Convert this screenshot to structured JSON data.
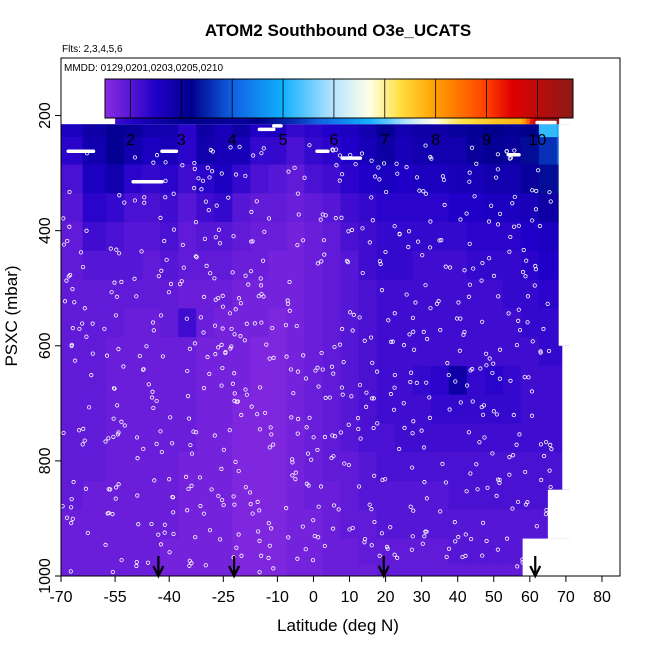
{
  "chart_data": {
    "type": "heatmap",
    "title": "ATOM2 Southbound O3e_UCATS",
    "flights_note": "Flts: 2,3,4,5,6",
    "dates_note": "MMDD: 0129,0201,0203,0205,0210",
    "xlabel": "Latitude (deg N)",
    "ylabel": "PSXC (mbar)",
    "xlim": [
      -70,
      85
    ],
    "ylim": [
      1000,
      100
    ],
    "x_tick_values": [
      -70,
      -55,
      -40,
      -25,
      -10,
      0,
      10,
      20,
      30,
      40,
      50,
      60,
      70,
      80
    ],
    "x_tick_labels": [
      "-70",
      "-55",
      "-40",
      "-25",
      "-10",
      "0",
      "10",
      "20",
      "30",
      "40",
      "50",
      "60",
      "70",
      "80"
    ],
    "y_tick_values": [
      200,
      400,
      600,
      800,
      1000
    ],
    "y_tick_labels": [
      "200",
      "400",
      "600",
      "800",
      "1000"
    ],
    "colorbar": {
      "min": 1.5,
      "max": 10.7,
      "tick_values": [
        2,
        3,
        4,
        5,
        6,
        7,
        8,
        9,
        10
      ],
      "tick_labels": [
        "2",
        "3",
        "4",
        "5",
        "6",
        "7",
        "8",
        "9",
        "10"
      ],
      "color_stops": [
        {
          "value": 1.5,
          "color": "#8a2be2"
        },
        {
          "value": 2.5,
          "color": "#2000c8"
        },
        {
          "value": 3.2,
          "color": "#00008b"
        },
        {
          "value": 4.0,
          "color": "#1060e0"
        },
        {
          "value": 5.0,
          "color": "#10b0ff"
        },
        {
          "value": 6.0,
          "color": "#b8e4ff"
        },
        {
          "value": 6.7,
          "color": "#ffffe8"
        },
        {
          "value": 7.3,
          "color": "#ffe040"
        },
        {
          "value": 8.0,
          "color": "#ffa000"
        },
        {
          "value": 9.0,
          "color": "#ff4000"
        },
        {
          "value": 9.5,
          "color": "#e00000"
        },
        {
          "value": 10.7,
          "color": "#8b1a1a"
        }
      ]
    },
    "arrow_latitudes": [
      -43,
      -22,
      19.5,
      61.5
    ],
    "lat_grid": [
      -68,
      -60,
      -55,
      -50,
      -45,
      -40,
      -35,
      -30,
      -25,
      -20,
      -15,
      -10,
      -5,
      0,
      5,
      10,
      15,
      20,
      25,
      30,
      35,
      40,
      45,
      50,
      55,
      60,
      65,
      70
    ],
    "pres_grid": [
      215,
      260,
      310,
      360,
      410,
      460,
      510,
      560,
      610,
      660,
      710,
      760,
      810,
      860,
      910,
      960,
      1000
    ],
    "o3_matrix": [
      [
        2.6,
        2.9,
        3.1,
        3.0,
        2.8,
        2.8,
        2.4,
        2.9,
        2.7,
        2.9,
        2.5,
        2.6,
        2.3,
        2.4,
        2.5,
        2.6,
        2.8,
        3.1,
        2.8,
        2.9,
        2.9,
        3.0,
        3.1,
        3.2,
        3.1,
        3.2,
        5.2,
        5.0
      ],
      [
        2.4,
        2.8,
        3.1,
        2.8,
        2.6,
        2.7,
        2.4,
        2.8,
        2.7,
        2.7,
        2.3,
        2.3,
        2.1,
        2.3,
        2.4,
        2.5,
        2.7,
        2.9,
        2.7,
        2.8,
        2.8,
        2.8,
        3.0,
        3.1,
        3.0,
        3.3,
        3.6,
        4.0
      ],
      [
        2.1,
        2.6,
        2.8,
        2.4,
        2.3,
        2.4,
        2.2,
        2.4,
        2.6,
        2.3,
        2.1,
        2.0,
        1.9,
        2.1,
        2.2,
        2.4,
        2.5,
        2.6,
        2.5,
        2.6,
        2.6,
        2.7,
        2.7,
        2.8,
        2.8,
        3.0,
        3.3,
        3.4
      ],
      [
        2.0,
        2.4,
        2.3,
        2.1,
        2.1,
        2.2,
        2.0,
        2.2,
        2.3,
        2.0,
        1.9,
        1.9,
        1.8,
        1.9,
        2.0,
        2.2,
        2.3,
        2.4,
        2.4,
        2.4,
        2.4,
        2.5,
        2.5,
        2.6,
        2.6,
        2.7,
        2.9,
        3.0
      ],
      [
        1.9,
        2.2,
        2.1,
        2.0,
        2.0,
        2.1,
        1.9,
        2.0,
        2.0,
        1.9,
        1.8,
        1.8,
        1.7,
        1.8,
        1.9,
        2.1,
        2.2,
        2.3,
        2.3,
        2.3,
        2.3,
        2.3,
        2.4,
        2.4,
        2.4,
        2.5,
        2.6,
        2.7
      ],
      [
        1.9,
        2.0,
        2.0,
        2.0,
        1.9,
        2.0,
        1.9,
        1.9,
        1.9,
        1.8,
        1.8,
        1.7,
        1.7,
        1.8,
        1.9,
        2.0,
        2.2,
        2.3,
        2.3,
        2.2,
        2.2,
        2.2,
        2.3,
        2.3,
        2.3,
        2.4,
        2.5,
        2.5
      ],
      [
        1.9,
        1.9,
        1.9,
        1.9,
        1.9,
        1.9,
        1.8,
        1.8,
        1.8,
        1.7,
        1.7,
        1.7,
        1.7,
        1.8,
        1.9,
        2.0,
        2.1,
        2.2,
        2.2,
        2.2,
        2.2,
        2.2,
        2.2,
        2.2,
        2.3,
        2.3,
        2.4,
        2.4
      ],
      [
        1.9,
        1.9,
        1.9,
        1.8,
        1.8,
        1.9,
        2.2,
        1.8,
        1.7,
        1.7,
        1.7,
        1.6,
        1.7,
        1.8,
        1.9,
        2.0,
        2.1,
        2.2,
        2.2,
        2.2,
        2.2,
        2.2,
        2.2,
        2.2,
        2.2,
        2.3,
        2.3,
        2.3
      ],
      [
        1.9,
        1.9,
        1.8,
        1.8,
        1.8,
        1.8,
        1.8,
        1.7,
        1.7,
        1.7,
        1.6,
        1.6,
        1.7,
        1.8,
        1.9,
        2.0,
        2.1,
        2.2,
        2.2,
        2.2,
        2.2,
        2.2,
        2.2,
        2.2,
        2.2,
        2.2,
        2.3,
        2.3
      ],
      [
        1.9,
        1.9,
        1.8,
        1.8,
        1.8,
        1.8,
        1.8,
        1.7,
        1.7,
        1.7,
        1.6,
        1.6,
        1.7,
        1.8,
        1.9,
        2.0,
        2.1,
        2.2,
        2.2,
        2.3,
        2.4,
        2.9,
        2.3,
        2.4,
        2.3,
        2.2,
        2.2,
        2.2
      ],
      [
        1.9,
        1.9,
        1.8,
        1.8,
        1.8,
        1.8,
        1.8,
        1.7,
        1.7,
        1.6,
        1.6,
        1.6,
        1.7,
        1.8,
        1.9,
        2.0,
        2.1,
        2.2,
        2.2,
        2.2,
        2.3,
        2.3,
        2.3,
        2.3,
        2.3,
        2.2,
        2.2,
        2.2
      ],
      [
        1.9,
        1.9,
        1.8,
        1.8,
        1.8,
        1.8,
        1.8,
        1.7,
        1.7,
        1.6,
        1.6,
        1.6,
        1.7,
        1.8,
        1.9,
        2.0,
        2.1,
        2.1,
        2.2,
        2.2,
        2.2,
        2.2,
        2.2,
        2.2,
        2.2,
        2.2,
        2.2,
        2.2
      ],
      [
        1.9,
        1.9,
        1.8,
        1.8,
        1.8,
        1.8,
        1.7,
        1.7,
        1.7,
        1.6,
        1.6,
        1.6,
        1.7,
        1.8,
        1.9,
        1.9,
        2.0,
        2.1,
        2.1,
        2.1,
        2.1,
        2.1,
        2.1,
        2.1,
        2.1,
        2.1,
        2.1,
        2.1
      ],
      [
        1.9,
        1.8,
        1.8,
        1.8,
        1.8,
        1.8,
        1.7,
        1.7,
        1.7,
        1.6,
        1.6,
        1.6,
        1.7,
        1.8,
        1.8,
        1.9,
        2.0,
        2.0,
        2.0,
        2.0,
        2.0,
        2.1,
        2.1,
        2.1,
        2.1,
        2.1,
        2.1,
        2.1
      ],
      [
        1.8,
        1.8,
        1.8,
        1.8,
        1.8,
        1.8,
        1.7,
        1.7,
        1.7,
        1.6,
        1.6,
        1.6,
        1.7,
        1.7,
        1.8,
        1.9,
        1.9,
        2.0,
        2.0,
        2.0,
        2.0,
        2.0,
        2.0,
        2.0,
        2.0,
        2.0,
        2.0,
        2.0
      ],
      [
        1.8,
        1.8,
        1.8,
        1.8,
        1.8,
        1.7,
        1.7,
        1.7,
        1.7,
        1.6,
        1.6,
        1.6,
        1.7,
        1.7,
        1.8,
        1.8,
        1.9,
        1.9,
        1.9,
        1.9,
        1.9,
        2.0,
        2.0,
        2.0,
        2.0,
        2.0,
        2.0,
        2.0
      ],
      [
        1.8,
        1.8,
        1.8,
        1.8,
        1.8,
        1.7,
        1.7,
        1.7,
        1.7,
        1.6,
        1.6,
        1.6,
        1.7,
        1.7,
        1.8,
        1.8,
        1.8,
        1.9,
        1.9,
        1.9,
        1.9,
        1.9,
        1.9,
        1.9,
        1.9,
        1.9,
        1.9,
        1.9
      ]
    ],
    "top_band": {
      "pressure_range": [
        175,
        215
      ],
      "lat_range": [
        -55,
        68
      ],
      "values_at": [
        {
          "lat": -55,
          "value": 2.2
        },
        {
          "lat": -45,
          "value": 2.8
        },
        {
          "lat": -35,
          "value": 3.2
        },
        {
          "lat": -20,
          "value": 3.0
        },
        {
          "lat": -5,
          "value": 3.6
        },
        {
          "lat": 10,
          "value": 4.6
        },
        {
          "lat": 20,
          "value": 5.4
        },
        {
          "lat": 30,
          "value": 6.4
        },
        {
          "lat": 40,
          "value": 7.2
        },
        {
          "lat": 50,
          "value": 7.6
        },
        {
          "lat": 58,
          "value": 7.8
        },
        {
          "lat": 61,
          "value": 9.6
        },
        {
          "lat": 64,
          "value": 10.4
        },
        {
          "lat": 68,
          "value": 10.4
        }
      ]
    },
    "flight_legs_white": [
      {
        "lat": [
          -55,
          -49
        ],
        "pres": 197
      },
      {
        "lat": [
          -68,
          -61
        ],
        "pres": 262
      },
      {
        "lat": [
          -50,
          -42
        ],
        "pres": 315
      },
      {
        "lat": [
          -42,
          -38
        ],
        "pres": 262
      },
      {
        "lat": [
          -15,
          -11
        ],
        "pres": 224
      },
      {
        "lat": [
          -11,
          -9
        ],
        "pres": 218
      },
      {
        "lat": [
          1,
          4
        ],
        "pres": 262
      },
      {
        "lat": [
          8,
          13
        ],
        "pres": 274
      },
      {
        "lat": [
          62,
          67
        ],
        "pres": 200
      },
      {
        "lat": [
          62,
          67
        ],
        "pres": 212
      },
      {
        "lat": [
          54,
          57
        ],
        "pres": 268
      }
    ],
    "missing_regions": [
      {
        "lat": [
          58,
          85
        ],
        "pres": [
          935,
          1000
        ]
      },
      {
        "lat": [
          65,
          85
        ],
        "pres": [
          850,
          935
        ]
      },
      {
        "lat": [
          69,
          85
        ],
        "pres": [
          600,
          850
        ]
      },
      {
        "lat": [
          68,
          85
        ],
        "pres": [
          215,
          600
        ]
      }
    ]
  }
}
